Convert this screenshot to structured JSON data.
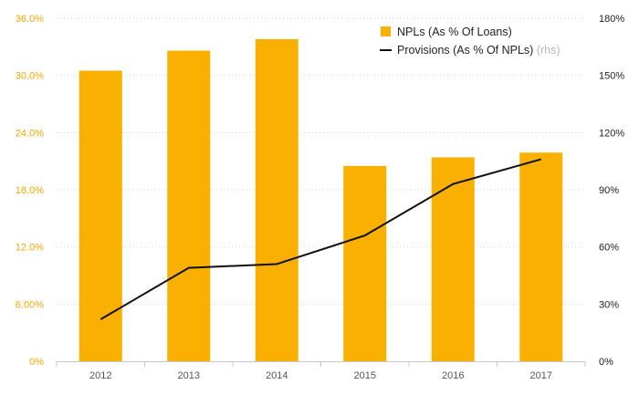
{
  "chart_data": {
    "type": "bar",
    "categories": [
      "2012",
      "2013",
      "2014",
      "2015",
      "2016",
      "2017"
    ],
    "series": [
      {
        "name": "NPLs (As % Of Loans)",
        "kind": "bar",
        "axis": "left",
        "color": "#f9b000",
        "values": [
          30.5,
          32.6,
          33.8,
          20.5,
          21.4,
          21.9
        ]
      },
      {
        "name": "Provisions (As % Of NPLs)",
        "legend_suffix": "(rhs)",
        "kind": "line",
        "axis": "right",
        "color": "#111111",
        "values": [
          22,
          49,
          51,
          66,
          93,
          106
        ]
      }
    ],
    "y_left": {
      "lim": [
        0,
        36
      ],
      "ticks": [
        0,
        6,
        12,
        18,
        24,
        30,
        36
      ],
      "tick_labels": [
        "0%",
        "6.00%",
        "12.0%",
        "18.0%",
        "24.0%",
        "30.0%",
        "36.0%"
      ],
      "color": "#f5a800"
    },
    "y_right": {
      "lim": [
        0,
        180
      ],
      "ticks": [
        0,
        30,
        60,
        90,
        120,
        150,
        180
      ],
      "tick_labels": [
        "0%",
        "30%",
        "60%",
        "90%",
        "120%",
        "150%",
        "180%"
      ]
    },
    "grid": true,
    "grid_style": "dotted",
    "legend_position": "top-right"
  }
}
